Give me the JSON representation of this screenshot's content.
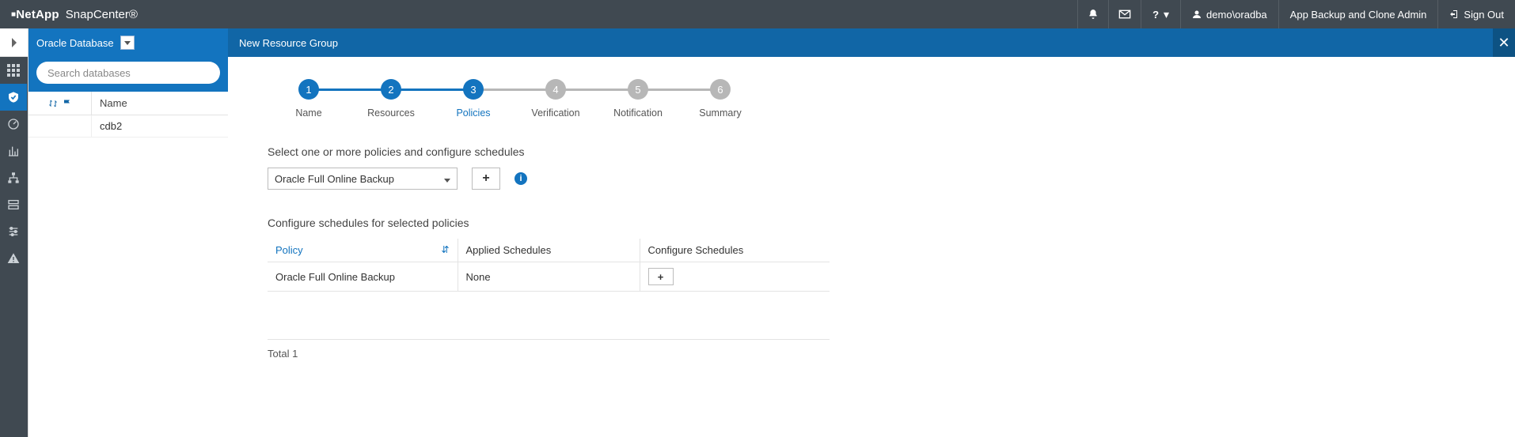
{
  "topbar": {
    "brand_company": "NetApp",
    "brand_product": "SnapCenter®",
    "user_label": "demo\\oradba",
    "role_label": "App Backup and Clone Admin",
    "signout_label": "Sign Out"
  },
  "resource_panel": {
    "title": "Oracle Database",
    "search_placeholder": "Search databases",
    "name_header": "Name",
    "rows": [
      "cdb2"
    ]
  },
  "bluebar": {
    "title": "New Resource Group"
  },
  "wizard_steps": [
    {
      "num": "1",
      "label": "Name",
      "state": "done"
    },
    {
      "num": "2",
      "label": "Resources",
      "state": "done"
    },
    {
      "num": "3",
      "label": "Policies",
      "state": "active"
    },
    {
      "num": "4",
      "label": "Verification",
      "state": "todo"
    },
    {
      "num": "5",
      "label": "Notification",
      "state": "todo"
    },
    {
      "num": "6",
      "label": "Summary",
      "state": "todo"
    }
  ],
  "policies": {
    "select_title": "Select one or more policies and configure schedules",
    "selected_policy": "Oracle Full Online Backup",
    "configure_title": "Configure schedules for selected policies",
    "headers": {
      "policy": "Policy",
      "applied": "Applied Schedules",
      "configure": "Configure Schedules"
    },
    "rows": [
      {
        "policy": "Oracle Full Online Backup",
        "applied": "None"
      }
    ],
    "total_label": "Total 1"
  }
}
